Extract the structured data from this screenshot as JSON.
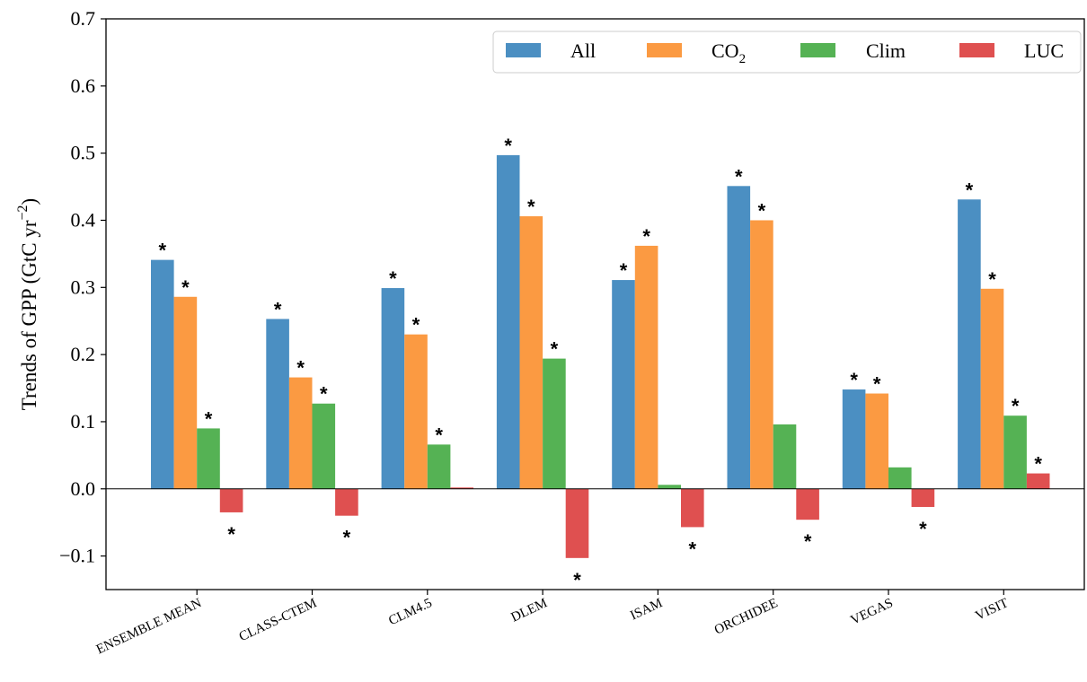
{
  "chart_data": {
    "type": "bar",
    "title": "",
    "xlabel": "",
    "ylabel": "Trends of GPP (GtC yr",
    "ylabel_superscript": "−2",
    "ylabel_close": ")",
    "ylim": [
      -0.15,
      0.7
    ],
    "yticks": [
      -0.1,
      0.0,
      0.1,
      0.2,
      0.3,
      0.4,
      0.5,
      0.6,
      0.7
    ],
    "ytick_labels": [
      "−0.1",
      "0.0",
      "0.1",
      "0.2",
      "0.3",
      "0.4",
      "0.5",
      "0.6",
      "0.7"
    ],
    "categories": [
      "ENSEMBLE MEAN",
      "CLASS-CTEM",
      "CLM4.5",
      "DLEM",
      "ISAM",
      "ORCHIDEE",
      "VEGAS",
      "VISIT"
    ],
    "legend_position": "top-right",
    "grid": false,
    "significance_marker": "*",
    "series": [
      {
        "name": "All",
        "color": "#4b8fc2",
        "values": [
          0.341,
          0.253,
          0.299,
          0.497,
          0.311,
          0.451,
          0.148,
          0.431
        ],
        "significant": [
          true,
          true,
          true,
          true,
          true,
          true,
          true,
          true
        ]
      },
      {
        "name": "CO",
        "name_subscript": "2",
        "color": "#fb9a42",
        "values": [
          0.286,
          0.166,
          0.23,
          0.406,
          0.362,
          0.4,
          0.142,
          0.298
        ],
        "significant": [
          true,
          true,
          true,
          true,
          true,
          true,
          true,
          true
        ]
      },
      {
        "name": "Clim",
        "color": "#55b254",
        "values": [
          0.09,
          0.127,
          0.066,
          0.194,
          0.006,
          0.096,
          0.032,
          0.109
        ],
        "significant": [
          true,
          true,
          true,
          true,
          false,
          false,
          false,
          true
        ]
      },
      {
        "name": "LUC",
        "color": "#df5050",
        "values": [
          -0.035,
          -0.04,
          0.002,
          -0.103,
          -0.057,
          -0.046,
          -0.027,
          0.023
        ],
        "significant": [
          true,
          true,
          false,
          true,
          true,
          true,
          true,
          true
        ]
      }
    ]
  }
}
